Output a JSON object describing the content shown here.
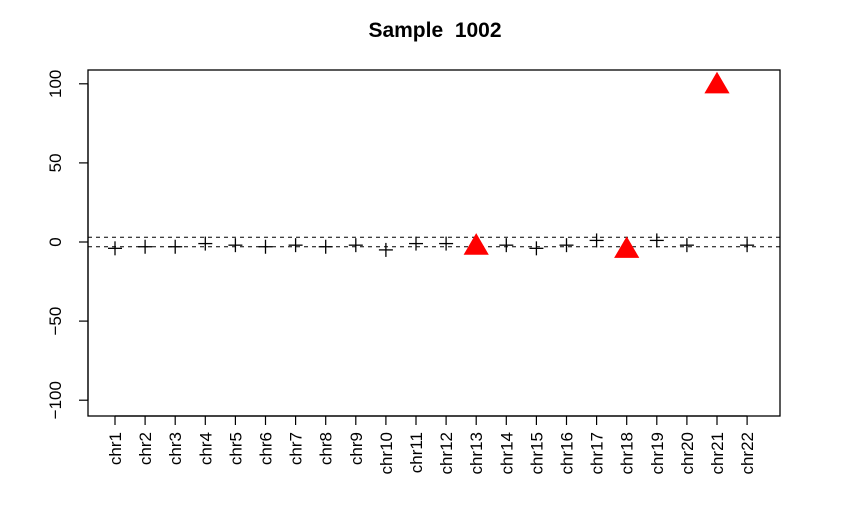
{
  "chart_data": {
    "type": "scatter",
    "title": "Sample  1002",
    "xlabel": "",
    "ylabel": "",
    "ylim": [
      -110,
      110
    ],
    "yticks": [
      -100,
      -50,
      0,
      50,
      100
    ],
    "ytick_labels": [
      "−100",
      "−50",
      "0",
      "50",
      "100"
    ],
    "reference_lines": [
      3,
      -3
    ],
    "categories": [
      "chr1",
      "chr2",
      "chr3",
      "chr4",
      "chr5",
      "chr6",
      "chr7",
      "chr8",
      "chr9",
      "chr10",
      "chr11",
      "chr12",
      "chr13",
      "chr14",
      "chr15",
      "chr16",
      "chr17",
      "chr18",
      "chr19",
      "chr20",
      "chr21",
      "chr22"
    ],
    "values": [
      -4,
      -3,
      -3,
      -1,
      -2,
      -3,
      -2,
      -3,
      -2,
      -5,
      -1,
      -1,
      -2,
      -2,
      -4,
      -2,
      1,
      -4,
      1,
      -2,
      100,
      -2
    ],
    "flagged": [
      false,
      false,
      false,
      false,
      false,
      false,
      false,
      false,
      false,
      false,
      false,
      false,
      true,
      false,
      false,
      false,
      false,
      true,
      false,
      false,
      true,
      false
    ],
    "colors": {
      "normal": "#000000",
      "flagged": "#ff0000"
    },
    "grid": false,
    "legend": "none"
  }
}
